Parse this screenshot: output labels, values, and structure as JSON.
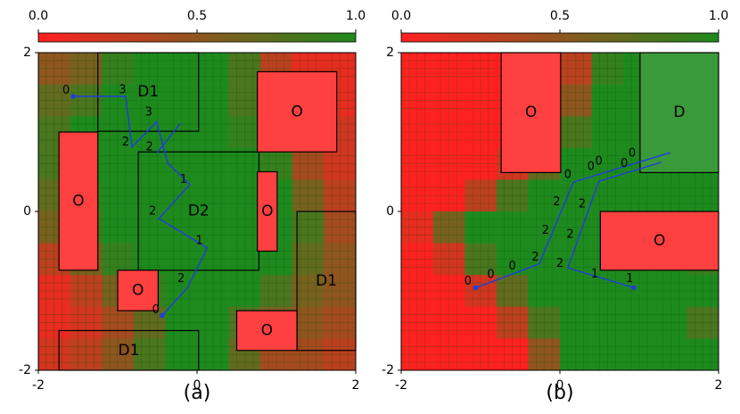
{
  "chart_data": [
    {
      "type": "heatmap",
      "label": "(a)",
      "cmap": [
        "#ff2020",
        "#1e8a1e"
      ],
      "colorbar_ticks": [
        {
          "value": 0,
          "label": "0.0"
        },
        0.5,
        {
          "value": 1,
          "label": "1.0"
        }
      ],
      "xlim": [
        -2,
        2
      ],
      "ylim": [
        -2,
        2
      ],
      "xticks": [
        -2,
        0,
        2
      ],
      "yticks": [
        -2,
        0,
        2
      ],
      "z": [
        [
          0.5,
          0.6,
          0.9,
          1,
          1,
          1,
          0.8,
          0.3,
          0.1,
          0.1
        ],
        [
          0.7,
          0.8,
          1,
          1,
          1,
          1,
          0.8,
          0.2,
          0.1,
          0.1
        ],
        [
          0.8,
          1,
          1,
          1,
          1,
          1,
          0.9,
          0.5,
          0.3,
          0.2
        ],
        [
          0.8,
          1,
          1,
          1,
          1,
          1,
          1,
          0.9,
          0.4,
          0.2
        ],
        [
          0.7,
          0.9,
          1,
          1,
          1,
          1,
          1,
          1,
          0.6,
          0.3
        ],
        [
          0.6,
          0.8,
          1,
          1,
          1,
          1,
          1,
          1,
          0.8,
          0.4
        ],
        [
          0.3,
          0.6,
          0.9,
          1,
          1,
          1,
          1,
          1,
          0.7,
          0.5
        ],
        [
          0.1,
          0.3,
          0.6,
          0.9,
          1,
          1,
          1,
          0.8,
          0.6,
          0.5
        ],
        [
          0.1,
          0.2,
          0.4,
          0.7,
          1,
          1,
          0.8,
          0.6,
          0.5,
          0.4
        ],
        [
          0.2,
          0.3,
          0.5,
          0.8,
          1,
          1,
          0.7,
          0.4,
          0.4,
          0.3
        ]
      ],
      "regions": [
        {
          "label": "D1",
          "x": [
            -1.25,
            0.02
          ],
          "y": [
            1.01,
            2
          ],
          "color": "none"
        },
        {
          "label": "D2",
          "x": [
            -0.74,
            0.78
          ],
          "y": [
            -0.74,
            0.75
          ],
          "color": "none"
        },
        {
          "label": "O",
          "x": [
            -1.74,
            -1.25
          ],
          "y": [
            -0.74,
            1.0
          ],
          "color": "#ff4040"
        },
        {
          "label": "O",
          "x": [
            0.76,
            1.76
          ],
          "y": [
            0.75,
            1.76
          ],
          "color": "#ff4040"
        },
        {
          "label": "O",
          "x": [
            0.76,
            1.01
          ],
          "y": [
            -0.5,
            0.5
          ],
          "color": "#ff4040"
        },
        {
          "label": "O",
          "x": [
            -1.0,
            -0.49
          ],
          "y": [
            -1.25,
            -0.74
          ],
          "color": "#ff4040"
        },
        {
          "label": "O",
          "x": [
            0.5,
            1.26
          ],
          "y": [
            -1.75,
            -1.25
          ],
          "color": "#ff4040"
        },
        {
          "label": "D1",
          "x": [
            1.26,
            2
          ],
          "y": [
            -1.75,
            0
          ],
          "color": "none"
        },
        {
          "label": "D1",
          "x": [
            -1.74,
            0.02
          ],
          "y": [
            -2,
            -1.5
          ],
          "color": "none"
        }
      ],
      "paths": [
        {
          "color": "#1f3fd8",
          "markers": "ends",
          "x": [
            -1.56,
            -0.9,
            -0.82,
            -0.51,
            -0.37,
            -0.09,
            -0.48,
            0.13,
            -0.12,
            -0.44
          ],
          "y": [
            1.45,
            1.45,
            0.81,
            1.13,
            0.61,
            0.34,
            -0.09,
            -0.46,
            -0.96,
            -1.31
          ]
        },
        {
          "color": "#1f3fd8",
          "markers": "none",
          "x": [
            -0.51,
            -0.21
          ],
          "y": [
            0.73,
            1.11
          ]
        }
      ],
      "annotations": [
        {
          "text": "0",
          "x": -1.65,
          "y": 1.52
        },
        {
          "text": "3",
          "x": -0.94,
          "y": 1.53
        },
        {
          "text": "3",
          "x": -0.61,
          "y": 1.25
        },
        {
          "text": "2",
          "x": -0.9,
          "y": 0.87
        },
        {
          "text": "2",
          "x": -0.6,
          "y": 0.81
        },
        {
          "text": "1",
          "x": -0.17,
          "y": 0.4
        },
        {
          "text": "2",
          "x": -0.56,
          "y": 0.0
        },
        {
          "text": "1",
          "x": 0.03,
          "y": -0.37
        },
        {
          "text": "2",
          "x": -0.2,
          "y": -0.85
        },
        {
          "text": "0",
          "x": -0.52,
          "y": -1.24
        }
      ]
    },
    {
      "type": "heatmap",
      "label": "(b)",
      "cmap": [
        "#ff2020",
        "#1e8a1e"
      ],
      "colorbar_ticks": [
        {
          "value": 0,
          "label": "0.0"
        },
        0.5,
        {
          "value": 1,
          "label": "1.0"
        }
      ],
      "xlim": [
        -2,
        2
      ],
      "ylim": [
        -2,
        2
      ],
      "xticks": [
        -2,
        0,
        2
      ],
      "yticks": [
        -2,
        0,
        2
      ],
      "z": [
        [
          0,
          0,
          0,
          0,
          0,
          0.3,
          0.9,
          1,
          1,
          1
        ],
        [
          0,
          0,
          0,
          0,
          0,
          0.5,
          1,
          1,
          1,
          1
        ],
        [
          0,
          0,
          0,
          0,
          0.2,
          0.8,
          1,
          1,
          1,
          1
        ],
        [
          0,
          0,
          0,
          0.2,
          0.7,
          1,
          1,
          1,
          1,
          1
        ],
        [
          0,
          0,
          0.3,
          0.8,
          1,
          1,
          1,
          1,
          1,
          1
        ],
        [
          0.1,
          0.6,
          1,
          1,
          1,
          1,
          1,
          1,
          1,
          1
        ],
        [
          0,
          0.2,
          0.8,
          1,
          1,
          1,
          1,
          1,
          1,
          0.9
        ],
        [
          0,
          0,
          0.2,
          0.7,
          1,
          1,
          1,
          1,
          1,
          1
        ],
        [
          0,
          0,
          0,
          0.3,
          0.8,
          1,
          1,
          1,
          1,
          0.8
        ],
        [
          0,
          0,
          0,
          0,
          0.5,
          1,
          1,
          1,
          1,
          1
        ]
      ],
      "regions": [
        {
          "label": "O",
          "x": [
            -0.74,
            0.01
          ],
          "y": [
            0.49,
            2
          ],
          "color": "#ff4040"
        },
        {
          "label": "D",
          "x": [
            1.01,
            2
          ],
          "y": [
            0.49,
            2
          ],
          "color": "#3a9a3a"
        },
        {
          "label": "O",
          "x": [
            0.51,
            2
          ],
          "y": [
            -0.74,
            0
          ],
          "color": "#ff4040"
        }
      ],
      "paths": [
        {
          "color": "#1f3fd8",
          "markers": "start",
          "x": [
            -1.06,
            -0.26,
            0.17,
            1.39
          ],
          "y": [
            -0.96,
            -0.66,
            0.37,
            0.74
          ]
        },
        {
          "color": "#1f3fd8",
          "markers": "start",
          "x": [
            0.93,
            0.1,
            0.49,
            1.28
          ],
          "y": [
            -0.96,
            -0.71,
            0.38,
            0.62
          ]
        }
      ],
      "annotations": [
        {
          "text": "0",
          "x": -1.16,
          "y": -0.88
        },
        {
          "text": "0",
          "x": -0.87,
          "y": -0.8
        },
        {
          "text": "0",
          "x": -0.6,
          "y": -0.69
        },
        {
          "text": "2",
          "x": -0.31,
          "y": -0.58
        },
        {
          "text": "2",
          "x": -0.18,
          "y": -0.24
        },
        {
          "text": "2",
          "x": -0.04,
          "y": 0.12
        },
        {
          "text": "0",
          "x": 0.1,
          "y": 0.46
        },
        {
          "text": "0",
          "x": 0.39,
          "y": 0.56
        },
        {
          "text": "0",
          "x": 0.91,
          "y": 0.73
        },
        {
          "text": "2",
          "x": 0.0,
          "y": -0.66
        },
        {
          "text": "1",
          "x": 0.44,
          "y": -0.79
        },
        {
          "text": "1",
          "x": 0.88,
          "y": -0.85
        },
        {
          "text": "2",
          "x": 0.13,
          "y": -0.29
        },
        {
          "text": "2",
          "x": 0.28,
          "y": 0.09
        },
        {
          "text": "0",
          "x": 0.49,
          "y": 0.63
        },
        {
          "text": "0",
          "x": 0.81,
          "y": 0.6
        }
      ]
    }
  ]
}
